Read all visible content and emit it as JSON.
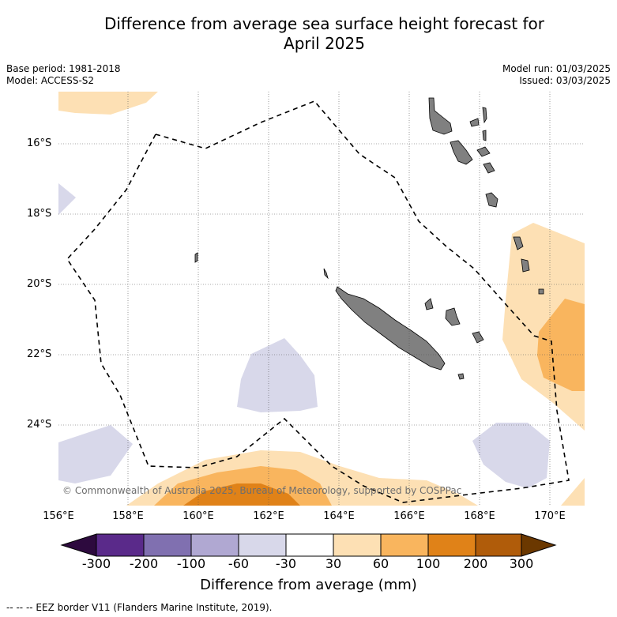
{
  "title_line1": "Difference from average sea surface height forecast for",
  "title_line2": "April 2025",
  "base_period": "Base period: 1981-2018",
  "model": "Model: ACCESS-S2",
  "model_run": "Model run: 01/03/2025",
  "issued": "Issued: 03/03/2025",
  "lat_labels": [
    "16°S",
    "18°S",
    "20°S",
    "22°S",
    "24°S"
  ],
  "lon_labels": [
    "156°E",
    "158°E",
    "160°E",
    "162°E",
    "164°E",
    "166°E",
    "168°E",
    "170°E"
  ],
  "copyright": "© Commonwealth of Australia 2025, Bureau of Meteorology, supported by COSPPac",
  "colorbar": {
    "ticks": [
      "-300",
      "-200",
      "-100",
      "-60",
      "-30",
      "30",
      "60",
      "100",
      "200",
      "300"
    ],
    "label": "Difference from average (mm)",
    "colors": {
      "below_min": "#2d0a3e",
      "lt_-200": "#5a2a8a",
      "lt_-100": "#8070b0",
      "lt_-60": "#b0a8d2",
      "lt_-30": "#d8d8ea",
      "neutral": "#ffffff",
      "gt_30": "#fde0b4",
      "gt_60": "#f9b55e",
      "gt_100": "#e08218",
      "gt_200": "#b05c0a",
      "above_max": "#6b3800"
    }
  },
  "legend_note": "--  --  -- EEZ border V11 (Flanders Marine Institute, 2019).",
  "land_color": "#808080"
}
